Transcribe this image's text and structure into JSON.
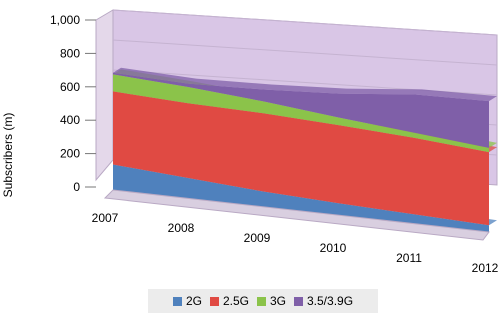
{
  "chart_data": {
    "type": "area",
    "stacked": true,
    "ylabel": "Subscribers (m)",
    "xlabel": "",
    "ylim": [
      0,
      1000
    ],
    "yticks": [
      "0",
      "200",
      "400",
      "600",
      "800",
      "1,000"
    ],
    "categories": [
      "2007",
      "2008",
      "2009",
      "2010",
      "2011",
      "2012"
    ],
    "series": [
      {
        "name": "2G",
        "color": "#4f81bd",
        "values": [
          150,
          120,
          90,
          70,
          55,
          40
        ]
      },
      {
        "name": "2.5G",
        "color": "#e04a43",
        "values": [
          430,
          440,
          460,
          460,
          450,
          430
        ]
      },
      {
        "name": "3G",
        "color": "#8bc34a",
        "values": [
          100,
          95,
          70,
          45,
          30,
          25
        ]
      },
      {
        "name": "3.5/3.9G",
        "color": "#7f5fa8",
        "values": [
          10,
          20,
          70,
          140,
          225,
          275
        ]
      }
    ],
    "legend_position": "bottom",
    "grid": true
  }
}
